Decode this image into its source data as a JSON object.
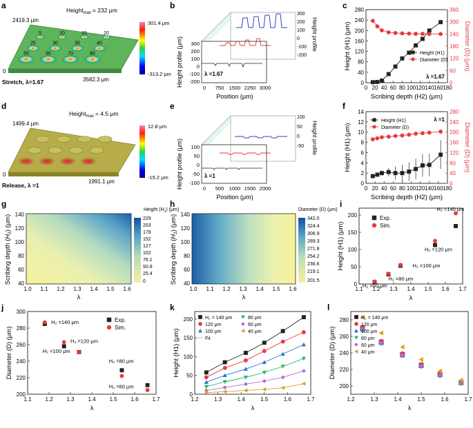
{
  "colors": {
    "black": "#222222",
    "red": "#e8393d",
    "blue": "#2873d6",
    "green": "#23b86a",
    "purple": "#b36ad8",
    "orange": "#d9a120",
    "grid": "#bbbbbb"
  },
  "panel_labels": {
    "a": "a",
    "b": "b",
    "c": "c",
    "d": "d",
    "e": "e",
    "f": "f",
    "g": "g",
    "h": "h",
    "i": "i",
    "j": "j",
    "k": "k",
    "l": "l"
  },
  "panel_a": {
    "height_max": "Height",
    "height_max_sub": "max",
    "height_max_val": "= 232 μm",
    "ylen": "2419.3 μm",
    "xlen": "3582.3 μm",
    "origin": "0",
    "mode": "Stretch, λ=1.67",
    "well_labels": [
      "5",
      "10",
      "15",
      "20",
      "25",
      "30",
      "35",
      "40",
      "50",
      "60",
      "70",
      "80"
    ],
    "cbar_max": "301.4 μm",
    "cbar_min": "-313.2 μm"
  },
  "panel_d": {
    "height_max": "Height",
    "height_max_sub": "max",
    "height_max_val": "= 4.5 μm",
    "ylen": "1499.4 μm",
    "xlen": "1991.1 μm",
    "origin": "0",
    "mode": "Release, λ =1",
    "cbar_max": "12.8 μm",
    "cbar_min": "-15.2 μm"
  },
  "panel_b": {
    "xlabel": "Position (μm)",
    "ylabel": "Height profile (μm)",
    "ylabel_right": "Height profile",
    "xticks": [
      "0",
      "750",
      "1500",
      "2250",
      "3000"
    ],
    "yticks": [
      "300",
      "200",
      "100",
      "0",
      "-100",
      "-200"
    ],
    "yticks_right": [
      "300",
      "200",
      "100",
      "0",
      "-100",
      "-200"
    ],
    "lambda": "λ =1.67"
  },
  "panel_e": {
    "xlabel": "Position (μm)",
    "ylabel": "Height profile (μm)",
    "ylabel_right": "Height profile",
    "xticks": [
      "0",
      "500",
      "1000",
      "1500",
      "2000"
    ],
    "yticks": [
      "100",
      "50",
      "0",
      "-50",
      "-100"
    ],
    "yticks_right": [
      "100",
      "50",
      "0",
      "-50"
    ],
    "lambda": "λ =1"
  },
  "panel_g": {
    "xlabel": "λ",
    "ylabel": "Scribing depth (",
    "ylabel_var": "H",
    "ylabel_sub": "2",
    "ylabel_end": ") (μm)",
    "xticks": [
      "1.0",
      "1.1",
      "1.2",
      "1.3",
      "1.4",
      "1.5",
      "1.6"
    ],
    "yticks": [
      "140",
      "120",
      "100",
      "80",
      "60",
      "40"
    ],
    "cbar_title": "Height (H",
    "cbar_title_sub": "1",
    "cbar_title_end": ") (μm)",
    "cbar_ticks": [
      "229",
      "203",
      "178",
      "152",
      "127",
      "102",
      "76.1",
      "50.8",
      "25.4",
      "0"
    ]
  },
  "panel_h": {
    "xlabel": "λ",
    "ylabel": "Scribing depth (",
    "ylabel_var": "H",
    "ylabel_sub": "2",
    "ylabel_end": ") (μm)",
    "xticks": [
      "1.0",
      "1.1",
      "1.2",
      "1.3",
      "1.4",
      "1.5",
      "1.6"
    ],
    "yticks": [
      "140",
      "120",
      "100",
      "80",
      "60",
      "40"
    ],
    "cbar_title": "Diameter (D) (μm)",
    "cbar_ticks": [
      "342.0",
      "324.4",
      "306.9",
      "289.3",
      "271.8",
      "254.2",
      "236.6",
      "219.1",
      "201.5"
    ]
  },
  "chart_data": [
    {
      "panel": "c",
      "type": "line",
      "xlabel": "Scribing depth (H2) (μm)",
      "ylabel": "Height (H1) (μm)",
      "ylabel_right": "Diameter (D) (μm)",
      "xlim": [
        0,
        180
      ],
      "ylim": [
        0,
        280
      ],
      "ylim_right": [
        0,
        360
      ],
      "xticks": [
        0,
        20,
        40,
        60,
        80,
        100,
        120,
        140,
        160,
        180
      ],
      "yticks": [
        0,
        40,
        80,
        120,
        160,
        200,
        240,
        280
      ],
      "yticks_right": [
        0,
        60,
        120,
        180,
        240,
        300,
        360
      ],
      "annotation": "λ =1.67",
      "series": [
        {
          "name": "Height (H1)",
          "axis": "left",
          "color": "black",
          "marker": "square",
          "x": [
            15,
            25,
            35,
            50,
            65,
            80,
            95,
            110,
            125,
            140,
            165
          ],
          "y": [
            2,
            3,
            8,
            33,
            62,
            93,
            115,
            143,
            168,
            200,
            232
          ]
        },
        {
          "name": "Diameter (D)",
          "axis": "right",
          "color": "red",
          "marker": "circle",
          "x": [
            15,
            25,
            35,
            50,
            65,
            80,
            95,
            110,
            125,
            140,
            165
          ],
          "y": [
            305,
            278,
            258,
            248,
            245,
            243,
            242,
            241,
            241,
            240,
            240
          ]
        }
      ]
    },
    {
      "panel": "f",
      "type": "line",
      "xlabel": "Scribing depth (H2) (μm)",
      "ylabel": "Height (H1) (μm)",
      "ylabel_right": "Diameter (D) (μm)",
      "xlim": [
        0,
        180
      ],
      "ylim": [
        0,
        14
      ],
      "ylim_right": [
        0,
        280
      ],
      "xticks": [
        0,
        20,
        40,
        60,
        80,
        100,
        120,
        140,
        160,
        180
      ],
      "yticks": [
        0,
        2,
        4,
        6,
        8,
        10,
        12,
        14
      ],
      "yticks_right": [
        0,
        40,
        80,
        120,
        160,
        200,
        240,
        280
      ],
      "annotation": "λ =1",
      "series": [
        {
          "name": "Height (H1)",
          "axis": "left",
          "color": "black",
          "marker": "square",
          "x": [
            15,
            25,
            35,
            50,
            65,
            80,
            95,
            110,
            125,
            140,
            165
          ],
          "y": [
            1.4,
            1.7,
            2.0,
            2.2,
            2.0,
            2.0,
            2.3,
            2.8,
            3.5,
            3.6,
            5.6
          ],
          "err": [
            0.3,
            0.4,
            0.5,
            0.8,
            1.3,
            1.6,
            1.8,
            2.0,
            2.2,
            2.2,
            2.8
          ]
        },
        {
          "name": "Diameter (D)",
          "axis": "right",
          "color": "red",
          "marker": "circle",
          "x": [
            15,
            25,
            35,
            50,
            65,
            80,
            95,
            110,
            125,
            140,
            165
          ],
          "y": [
            172,
            176,
            180,
            182,
            185,
            187,
            190,
            194,
            196,
            198,
            202
          ],
          "err": [
            4,
            4,
            4,
            4,
            5,
            5,
            5,
            5,
            6,
            6,
            7
          ]
        }
      ]
    },
    {
      "panel": "i",
      "type": "scatter",
      "xlabel": "λ",
      "ylabel": "Height (H1) (μm)",
      "xlim": [
        1.1,
        1.7
      ],
      "ylim": [
        0,
        220
      ],
      "xticks": [
        1.1,
        1.2,
        1.3,
        1.4,
        1.5,
        1.6,
        1.7
      ],
      "yticks": [
        0,
        50,
        100,
        150,
        200
      ],
      "series": [
        {
          "name": "Exp.",
          "color": "black",
          "marker": "square",
          "x": [
            1.19,
            1.27,
            1.34,
            1.54,
            1.66
          ],
          "y": [
            5,
            28,
            53,
            113,
            168
          ]
        },
        {
          "name": "Sim.",
          "color": "red",
          "marker": "circle",
          "x": [
            1.19,
            1.27,
            1.34,
            1.54,
            1.66
          ],
          "y": [
            7,
            30,
            55,
            125,
            205
          ]
        }
      ],
      "annotations": [
        "H2 =140 μm",
        "H2 =120 μm",
        "H2 =100 μm",
        "H2 =80 μm",
        "H2 =60 μm"
      ]
    },
    {
      "panel": "j",
      "type": "scatter",
      "xlabel": "λ",
      "ylabel": "Diameter (D) (μm)",
      "xlim": [
        1.1,
        1.7
      ],
      "ylim": [
        200,
        300
      ],
      "xticks": [
        1.1,
        1.2,
        1.3,
        1.4,
        1.5,
        1.6,
        1.7
      ],
      "yticks": [
        200,
        220,
        240,
        260,
        280,
        300
      ],
      "series": [
        {
          "name": "Exp.",
          "color": "black",
          "marker": "square",
          "x": [
            1.18,
            1.27,
            1.34,
            1.54,
            1.66
          ],
          "y": [
            285,
            258,
            251,
            229,
            211
          ]
        },
        {
          "name": "Sim.",
          "color": "red",
          "marker": "circle",
          "x": [
            1.18,
            1.27,
            1.34,
            1.54,
            1.66
          ],
          "y": [
            287,
            263,
            251,
            222,
            205
          ]
        }
      ],
      "annotations": [
        "H2 =140 μm",
        "H2 =120 μm",
        "H2 =100 μm",
        "H2 =80 μm",
        "H2 =60 μm"
      ]
    },
    {
      "panel": "k",
      "type": "line",
      "xlabel": "λ",
      "ylabel": "Height (H1) (μm)",
      "xlim": [
        1.2,
        1.7
      ],
      "ylim": [
        0,
        220
      ],
      "xticks": [
        1.2,
        1.3,
        1.4,
        1.5,
        1.6,
        1.7
      ],
      "yticks": [
        0,
        50,
        100,
        150,
        200
      ],
      "legend_fit": "Fit",
      "x": [
        1.25,
        1.33,
        1.42,
        1.5,
        1.58,
        1.67
      ],
      "series": [
        {
          "name": "H2 = 140 μm",
          "color": "black",
          "marker": "square",
          "values": [
            58,
            85,
            110,
            137,
            168,
            205
          ]
        },
        {
          "name": "120 μm",
          "color": "red",
          "marker": "circle",
          "values": [
            45,
            70,
            90,
            115,
            140,
            165
          ]
        },
        {
          "name": "100 μm",
          "color": "blue",
          "marker": "triangle-up",
          "values": [
            32,
            50,
            67,
            85,
            107,
            132
          ]
        },
        {
          "name": "80 μm",
          "color": "green",
          "marker": "triangle-down",
          "values": [
            20,
            33,
            45,
            58,
            74,
            95
          ]
        },
        {
          "name": "60 μm",
          "color": "purple",
          "marker": "diamond",
          "values": [
            10,
            18,
            27,
            35,
            45,
            62
          ]
        },
        {
          "name": "40 μm",
          "color": "orange",
          "marker": "triangle-left",
          "values": [
            4,
            7,
            10,
            13,
            17,
            28
          ]
        }
      ]
    },
    {
      "panel": "l",
      "type": "scatter",
      "xlabel": "λ",
      "ylabel": "Diameter (D) (μm)",
      "xlim": [
        1.2,
        1.7
      ],
      "ylim": [
        190,
        290
      ],
      "xticks": [
        1.2,
        1.3,
        1.4,
        1.5,
        1.6,
        1.7
      ],
      "yticks": [
        200,
        220,
        240,
        260,
        280
      ],
      "x": [
        1.25,
        1.33,
        1.42,
        1.5,
        1.58,
        1.67
      ],
      "series": [
        {
          "name": "H2 = 140 μm",
          "color": "black",
          "marker": "square",
          "values": [
            270,
            253,
            238,
            225,
            214,
            204
          ]
        },
        {
          "name": "120 μm",
          "color": "red",
          "marker": "circle",
          "values": [
            271,
            254,
            239,
            226,
            215,
            205
          ]
        },
        {
          "name": "100 μm",
          "color": "blue",
          "marker": "triangle-up",
          "values": [
            268,
            252,
            237,
            224,
            213,
            204
          ]
        },
        {
          "name": "80 μm",
          "color": "green",
          "marker": "triangle-down",
          "values": [
            267,
            251,
            236,
            223,
            212,
            203
          ]
        },
        {
          "name": "60 μm",
          "color": "purple",
          "marker": "diamond",
          "values": [
            269,
            252,
            237,
            224,
            213,
            203
          ]
        },
        {
          "name": "40 μm",
          "color": "orange",
          "marker": "triangle-left",
          "values": [
            283,
            264,
            247,
            232,
            218,
            207
          ]
        }
      ]
    }
  ]
}
